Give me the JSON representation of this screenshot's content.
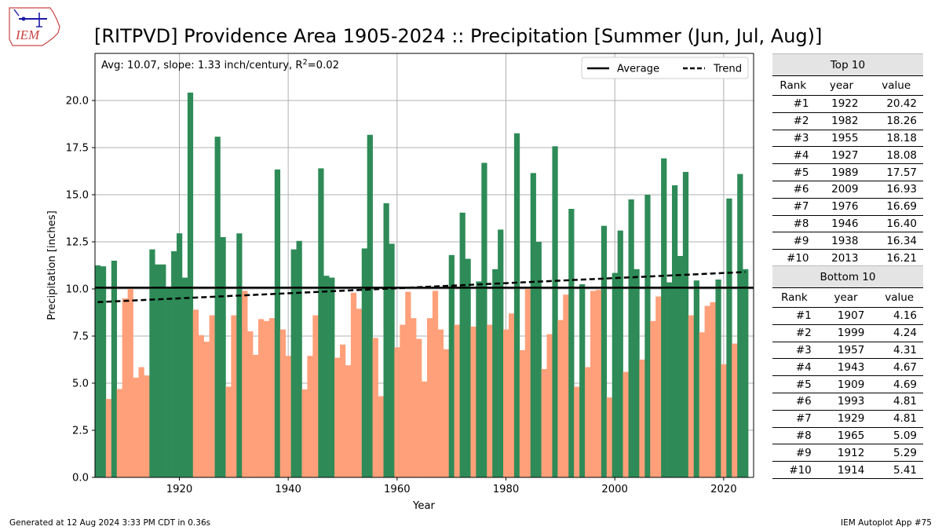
{
  "title": "[RITPVD] Providence Area 1905-2024 :: Precipitation [Summer (Jun, Jul, Aug)]",
  "logo_text": "IEM",
  "footer_left": "Generated at 12 Aug 2024 3:33 PM CDT in 0.36s",
  "footer_right": "IEM Autoplot App #75",
  "chart_data": {
    "type": "bar",
    "xlabel": "Year",
    "ylabel": "Precipitation [inches]",
    "annotation_text": "Avg: 10.07, slope: 1.33 inch/century, R",
    "annotation_sup": "2",
    "annotation_tail": "=0.02",
    "xlim": [
      1904.5,
      2025.5
    ],
    "ylim": [
      0,
      22.5
    ],
    "xticks": [
      1920,
      1940,
      1960,
      1980,
      2000,
      2020
    ],
    "yticks": [
      0.0,
      2.5,
      5.0,
      7.5,
      10.0,
      12.5,
      15.0,
      17.5,
      20.0
    ],
    "grid": true,
    "legend": [
      "Average",
      "Trend"
    ],
    "legend_position": "top-right",
    "average": 10.07,
    "trend_start": [
      1905,
      9.3
    ],
    "trend_end": [
      2024,
      10.9
    ],
    "above_color": "#2e8b57",
    "below_color": "#ffa07a",
    "years": [
      1905,
      1906,
      1907,
      1908,
      1909,
      1910,
      1911,
      1912,
      1913,
      1914,
      1915,
      1916,
      1917,
      1918,
      1919,
      1920,
      1921,
      1922,
      1923,
      1924,
      1925,
      1926,
      1927,
      1928,
      1929,
      1930,
      1931,
      1932,
      1933,
      1934,
      1935,
      1936,
      1937,
      1938,
      1939,
      1940,
      1941,
      1942,
      1943,
      1944,
      1945,
      1946,
      1947,
      1948,
      1949,
      1950,
      1951,
      1952,
      1953,
      1954,
      1955,
      1956,
      1957,
      1958,
      1959,
      1960,
      1961,
      1962,
      1963,
      1964,
      1965,
      1966,
      1967,
      1968,
      1969,
      1970,
      1971,
      1972,
      1973,
      1974,
      1975,
      1976,
      1977,
      1978,
      1979,
      1980,
      1981,
      1982,
      1983,
      1984,
      1985,
      1986,
      1987,
      1988,
      1989,
      1990,
      1991,
      1992,
      1993,
      1994,
      1995,
      1996,
      1997,
      1998,
      1999,
      2000,
      2001,
      2002,
      2003,
      2004,
      2005,
      2006,
      2007,
      2008,
      2009,
      2010,
      2011,
      2012,
      2013,
      2014,
      2015,
      2016,
      2017,
      2018,
      2019,
      2020,
      2021,
      2022,
      2023,
      2024
    ],
    "values": [
      11.25,
      11.2,
      4.16,
      11.5,
      4.69,
      9.5,
      10.0,
      5.29,
      5.85,
      5.41,
      12.1,
      11.3,
      11.3,
      10.1,
      12.0,
      12.95,
      10.6,
      20.42,
      8.9,
      7.55,
      7.2,
      8.6,
      18.08,
      12.75,
      4.81,
      8.6,
      12.95,
      9.9,
      7.75,
      6.5,
      8.4,
      8.3,
      8.45,
      16.34,
      7.85,
      6.45,
      12.1,
      12.55,
      4.67,
      6.45,
      8.6,
      16.4,
      10.7,
      10.6,
      6.35,
      7.05,
      5.95,
      9.8,
      8.95,
      12.15,
      18.18,
      7.4,
      4.31,
      14.55,
      12.4,
      6.9,
      8.1,
      9.85,
      8.45,
      7.35,
      5.09,
      8.45,
      9.9,
      7.85,
      6.8,
      11.8,
      8.1,
      14.05,
      11.6,
      8.0,
      10.4,
      16.69,
      8.1,
      11.05,
      13.15,
      7.85,
      8.7,
      18.26,
      6.75,
      10.0,
      16.15,
      12.5,
      5.75,
      7.6,
      17.57,
      8.35,
      9.7,
      14.25,
      4.81,
      10.25,
      5.85,
      9.9,
      9.95,
      13.35,
      4.24,
      10.85,
      13.1,
      5.6,
      14.75,
      11.05,
      6.25,
      15.0,
      8.3,
      9.6,
      16.93,
      10.35,
      15.5,
      11.75,
      16.21,
      8.6,
      10.45,
      7.7,
      9.1,
      9.3,
      10.5,
      6.0,
      14.8,
      7.1,
      16.1,
      11.05
    ]
  },
  "tables": {
    "columns": [
      "Rank",
      "year",
      "value"
    ],
    "top": {
      "header": "Top 10",
      "rows": [
        [
          "#1",
          "1922",
          "20.42"
        ],
        [
          "#2",
          "1982",
          "18.26"
        ],
        [
          "#3",
          "1955",
          "18.18"
        ],
        [
          "#4",
          "1927",
          "18.08"
        ],
        [
          "#5",
          "1989",
          "17.57"
        ],
        [
          "#6",
          "2009",
          "16.93"
        ],
        [
          "#7",
          "1976",
          "16.69"
        ],
        [
          "#8",
          "1946",
          "16.40"
        ],
        [
          "#9",
          "1938",
          "16.34"
        ],
        [
          "#10",
          "2013",
          "16.21"
        ]
      ]
    },
    "bottom": {
      "header": "Bottom 10",
      "rows": [
        [
          "#1",
          "1907",
          "4.16"
        ],
        [
          "#2",
          "1999",
          "4.24"
        ],
        [
          "#3",
          "1957",
          "4.31"
        ],
        [
          "#4",
          "1943",
          "4.67"
        ],
        [
          "#5",
          "1909",
          "4.69"
        ],
        [
          "#6",
          "1993",
          "4.81"
        ],
        [
          "#7",
          "1929",
          "4.81"
        ],
        [
          "#8",
          "1965",
          "5.09"
        ],
        [
          "#9",
          "1912",
          "5.29"
        ],
        [
          "#10",
          "1914",
          "5.41"
        ]
      ]
    }
  }
}
